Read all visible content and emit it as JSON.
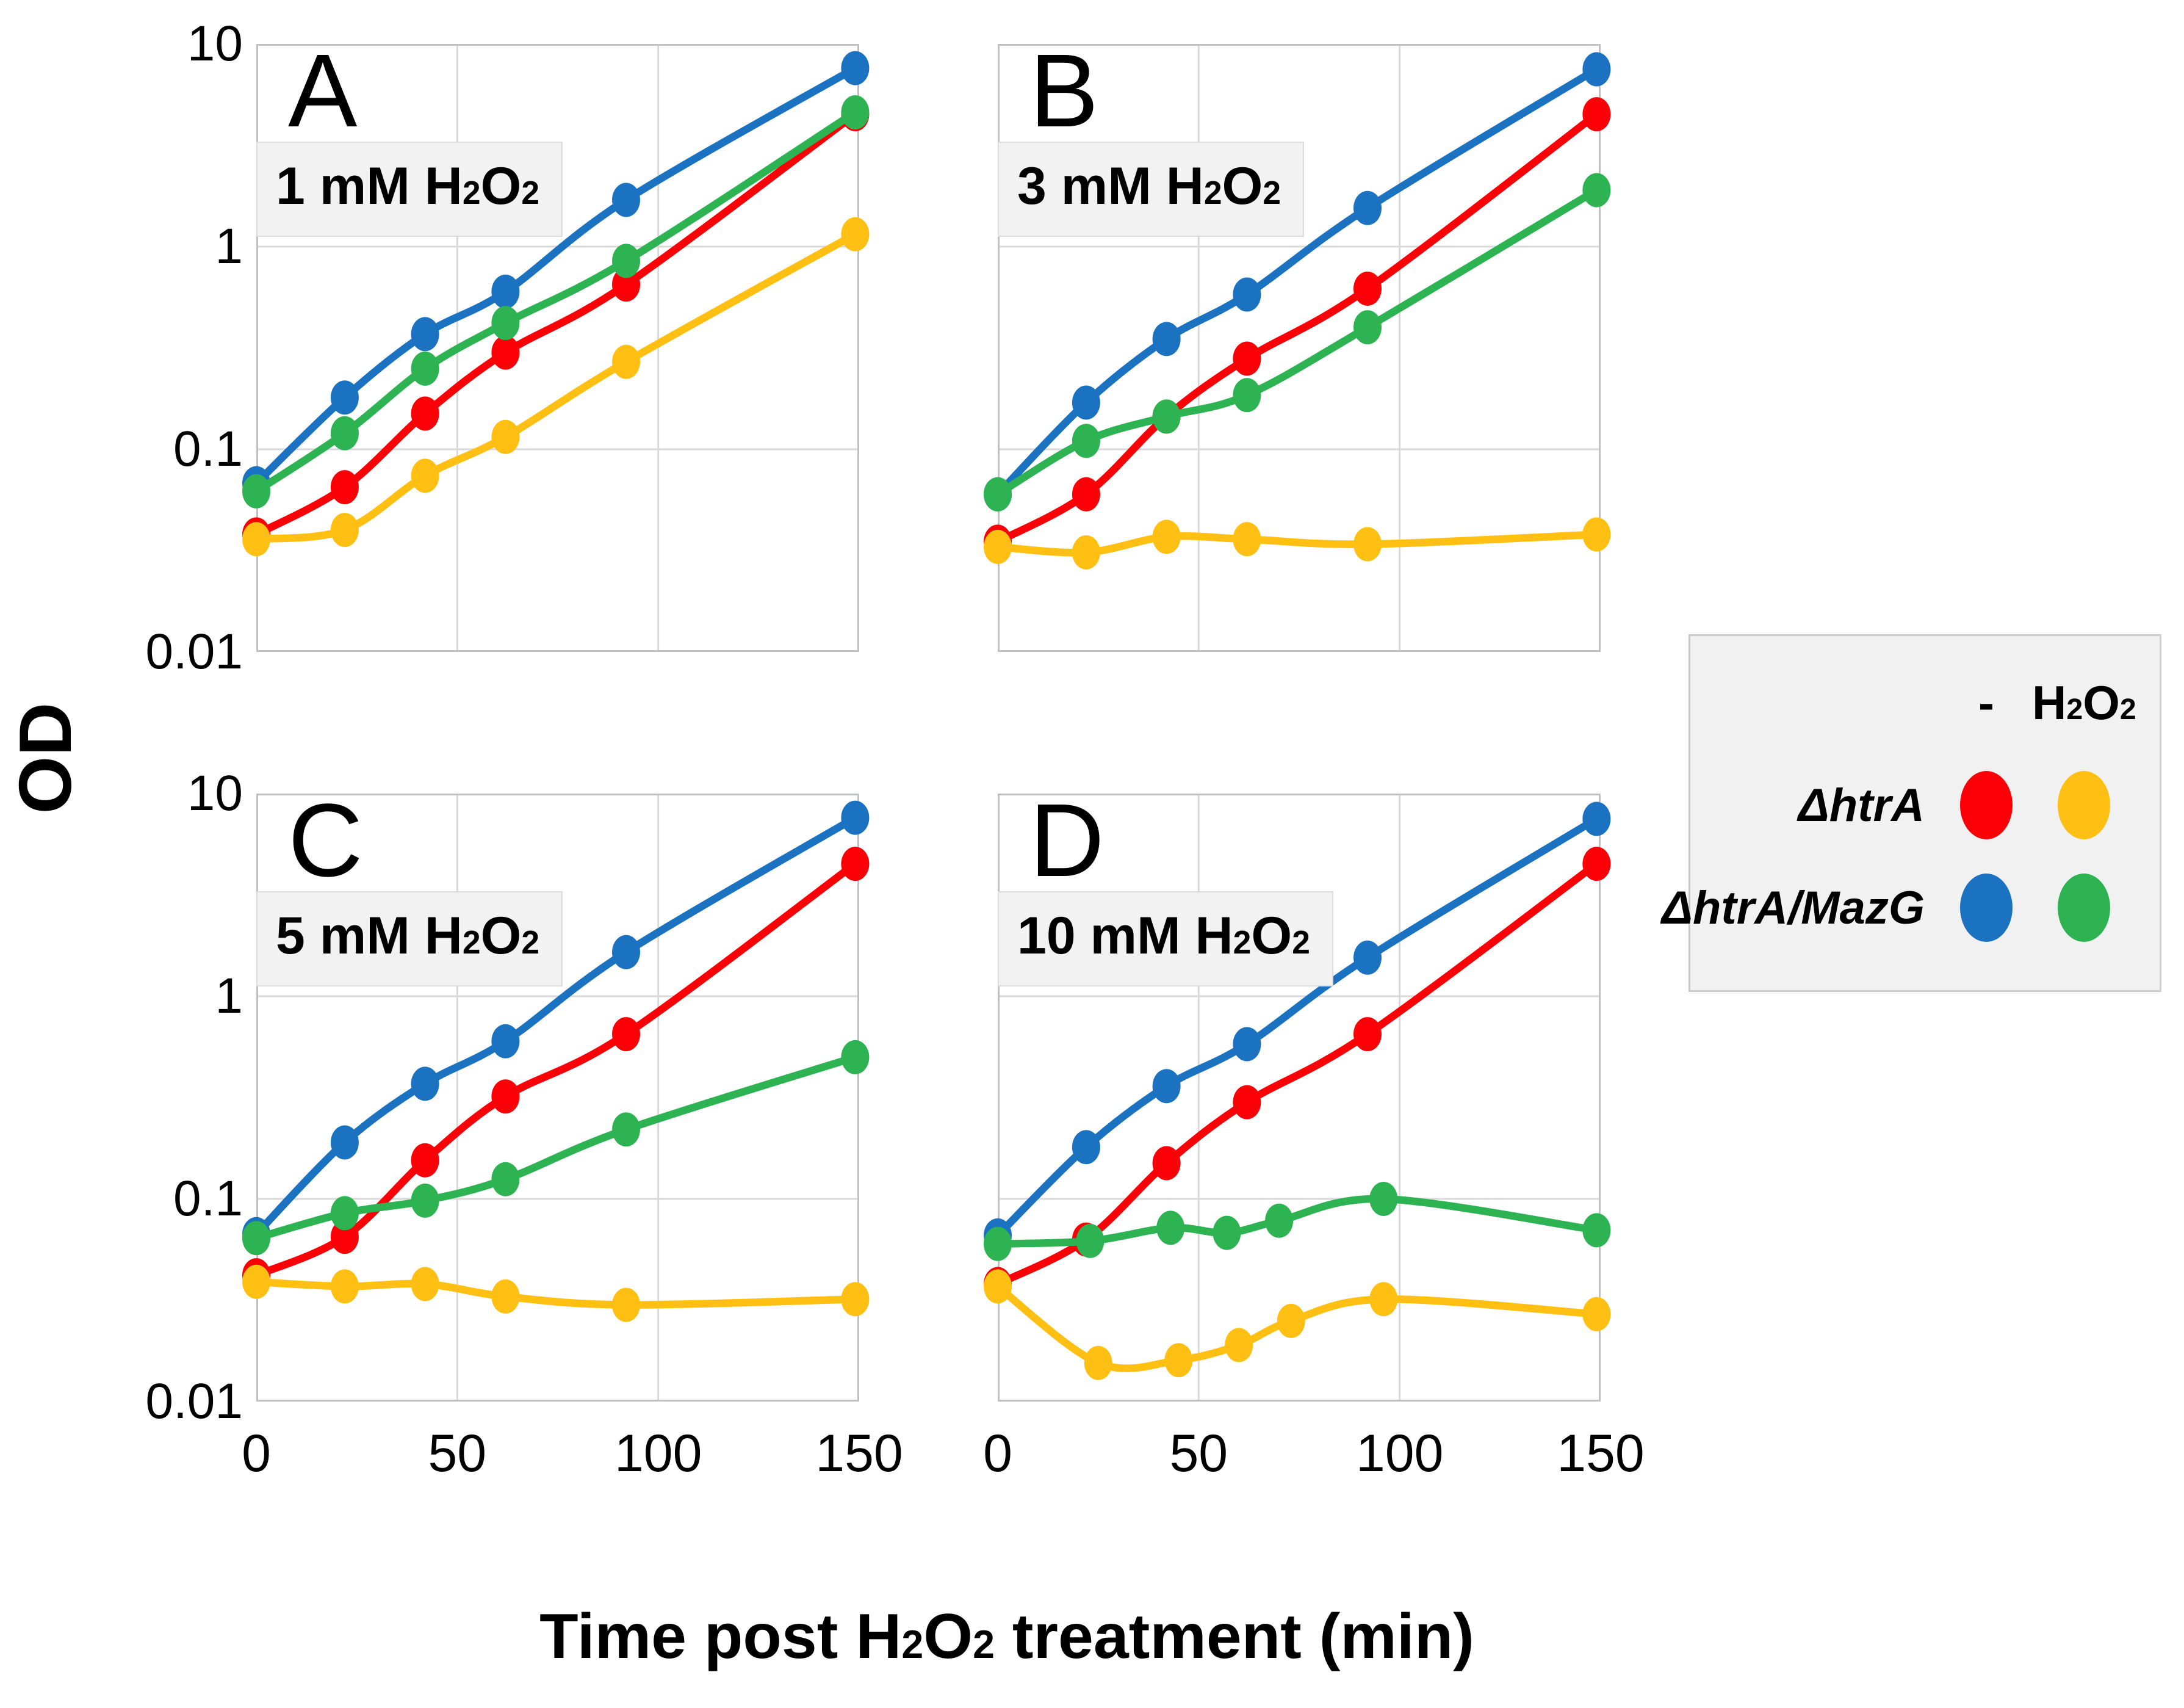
{
  "figure": {
    "y_axis_title": "OD",
    "x_axis_title": "Time post H{2}O{2} treatment (min)"
  },
  "axes": {
    "x_tick_labels": [
      "0",
      "50",
      "100",
      "150"
    ],
    "x_tick_values": [
      0,
      50,
      100,
      150
    ],
    "y_tick_labels": [
      "10",
      "1",
      "0.1",
      "0.01"
    ],
    "y_tick_values": [
      10,
      1,
      0.1,
      0.01
    ],
    "xlim": [
      0,
      150
    ],
    "ylim": [
      0.01,
      10
    ],
    "y_scale": "log",
    "grid": true
  },
  "colors": {
    "red": "#FB0007",
    "yellow": "#FFC013",
    "blue": "#1B72C0",
    "green": "#2EB353",
    "grid": "#D9D9D9",
    "frame": "#C0C0C0",
    "cond_box_bg": "#F2F2F2",
    "cond_box_border": "#DCDCDC",
    "legend_bg": "#F1F1F1",
    "legend_border": "#CBCBCB"
  },
  "legend": {
    "col_headers": [
      "-",
      "H{2}O{2}"
    ],
    "rows": [
      {
        "label": "ΔhtrA",
        "dot_colors": [
          "red",
          "yellow"
        ]
      },
      {
        "label": "ΔhtrA/MazG",
        "dot_colors": [
          "blue",
          "green"
        ]
      }
    ]
  },
  "chart_data": [
    {
      "type": "line",
      "panel_letter": "A",
      "condition_label": "1 mM H{2}O{2}",
      "xlabel": "Time post H2O2 treatment (min)",
      "ylabel": "OD",
      "y_scale": "log",
      "ylim": [
        0.01,
        10
      ],
      "xlim": [
        0,
        150
      ],
      "series": [
        {
          "name": "ΔhtrA",
          "treatment": "-",
          "color": "red",
          "x": [
            0,
            22,
            42,
            62,
            92,
            149
          ],
          "y": [
            0.038,
            0.065,
            0.15,
            0.3,
            0.65,
            4.5
          ]
        },
        {
          "name": "ΔhtrA",
          "treatment": "H2O2",
          "color": "yellow",
          "x": [
            0,
            22,
            42,
            62,
            92,
            149
          ],
          "y": [
            0.036,
            0.04,
            0.074,
            0.115,
            0.27,
            1.15
          ]
        },
        {
          "name": "ΔhtrA/MazG",
          "treatment": "-",
          "color": "blue",
          "x": [
            0,
            22,
            42,
            62,
            92,
            149
          ],
          "y": [
            0.068,
            0.18,
            0.37,
            0.6,
            1.7,
            7.6
          ]
        },
        {
          "name": "ΔhtrA/MazG",
          "treatment": "H2O2",
          "color": "green",
          "x": [
            0,
            22,
            42,
            62,
            92,
            149
          ],
          "y": [
            0.062,
            0.12,
            0.25,
            0.42,
            0.85,
            4.6
          ]
        }
      ]
    },
    {
      "type": "line",
      "panel_letter": "B",
      "condition_label": "3 mM H{2}O{2}",
      "xlabel": "Time post H2O2 treatment (min)",
      "ylabel": "OD",
      "y_scale": "log",
      "ylim": [
        0.01,
        10
      ],
      "xlim": [
        0,
        150
      ],
      "series": [
        {
          "name": "ΔhtrA",
          "treatment": "-",
          "color": "red",
          "x": [
            0,
            22,
            42,
            62,
            92,
            149
          ],
          "y": [
            0.035,
            0.06,
            0.145,
            0.28,
            0.62,
            4.5
          ]
        },
        {
          "name": "ΔhtrA",
          "treatment": "H2O2",
          "color": "yellow",
          "x": [
            0,
            22,
            42,
            62,
            92,
            149
          ],
          "y": [
            0.033,
            0.031,
            0.037,
            0.036,
            0.034,
            0.038
          ]
        },
        {
          "name": "ΔhtrA/MazG",
          "treatment": "-",
          "color": "blue",
          "x": [
            0,
            22,
            42,
            62,
            92,
            149
          ],
          "y": [
            0.06,
            0.17,
            0.35,
            0.58,
            1.55,
            7.5
          ]
        },
        {
          "name": "ΔhtrA/MazG",
          "treatment": "H2O2",
          "color": "green",
          "x": [
            0,
            22,
            42,
            62,
            92,
            149
          ],
          "y": [
            0.06,
            0.11,
            0.145,
            0.185,
            0.4,
            1.9
          ]
        }
      ]
    },
    {
      "type": "line",
      "panel_letter": "C",
      "condition_label": "5 mM H{2}O{2}",
      "xlabel": "Time post H2O2 treatment (min)",
      "ylabel": "OD",
      "y_scale": "log",
      "ylim": [
        0.01,
        10
      ],
      "xlim": [
        0,
        150
      ],
      "series": [
        {
          "name": "ΔhtrA",
          "treatment": "-",
          "color": "red",
          "x": [
            0,
            22,
            42,
            62,
            92,
            149
          ],
          "y": [
            0.042,
            0.065,
            0.155,
            0.32,
            0.65,
            4.5
          ]
        },
        {
          "name": "ΔhtrA",
          "treatment": "H2O2",
          "color": "yellow",
          "x": [
            0,
            22,
            42,
            62,
            92,
            149
          ],
          "y": [
            0.039,
            0.037,
            0.038,
            0.033,
            0.03,
            0.032
          ]
        },
        {
          "name": "ΔhtrA/MazG",
          "treatment": "-",
          "color": "blue",
          "x": [
            0,
            22,
            42,
            62,
            92,
            149
          ],
          "y": [
            0.067,
            0.19,
            0.37,
            0.6,
            1.65,
            7.6
          ]
        },
        {
          "name": "ΔhtrA/MazG",
          "treatment": "H2O2",
          "color": "green",
          "x": [
            0,
            22,
            42,
            62,
            92,
            149
          ],
          "y": [
            0.064,
            0.085,
            0.098,
            0.125,
            0.22,
            0.5
          ]
        }
      ]
    },
    {
      "type": "line",
      "panel_letter": "D",
      "condition_label": "10 mM H{2}O{2}",
      "xlabel": "Time post H2O2 treatment (min)",
      "ylabel": "OD",
      "y_scale": "log",
      "ylim": [
        0.01,
        10
      ],
      "xlim": [
        0,
        150
      ],
      "series": [
        {
          "name": "ΔhtrA",
          "treatment": "-",
          "color": "red",
          "x": [
            0,
            22,
            42,
            62,
            92,
            149
          ],
          "y": [
            0.038,
            0.063,
            0.15,
            0.3,
            0.65,
            4.5
          ]
        },
        {
          "name": "ΔhtrA",
          "treatment": "H2O2",
          "color": "yellow",
          "x": [
            0,
            25,
            45,
            60,
            73,
            96,
            149
          ],
          "y": [
            0.037,
            0.0155,
            0.016,
            0.019,
            0.025,
            0.032,
            0.027
          ]
        },
        {
          "name": "ΔhtrA/MazG",
          "treatment": "-",
          "color": "blue",
          "x": [
            0,
            22,
            42,
            62,
            92,
            149
          ],
          "y": [
            0.066,
            0.18,
            0.36,
            0.58,
            1.55,
            7.5
          ]
        },
        {
          "name": "ΔhtrA/MazG",
          "treatment": "H2O2",
          "color": "green",
          "x": [
            0,
            23,
            43,
            57,
            70,
            96,
            149
          ],
          "y": [
            0.06,
            0.062,
            0.072,
            0.068,
            0.078,
            0.1,
            0.07
          ]
        }
      ]
    }
  ]
}
